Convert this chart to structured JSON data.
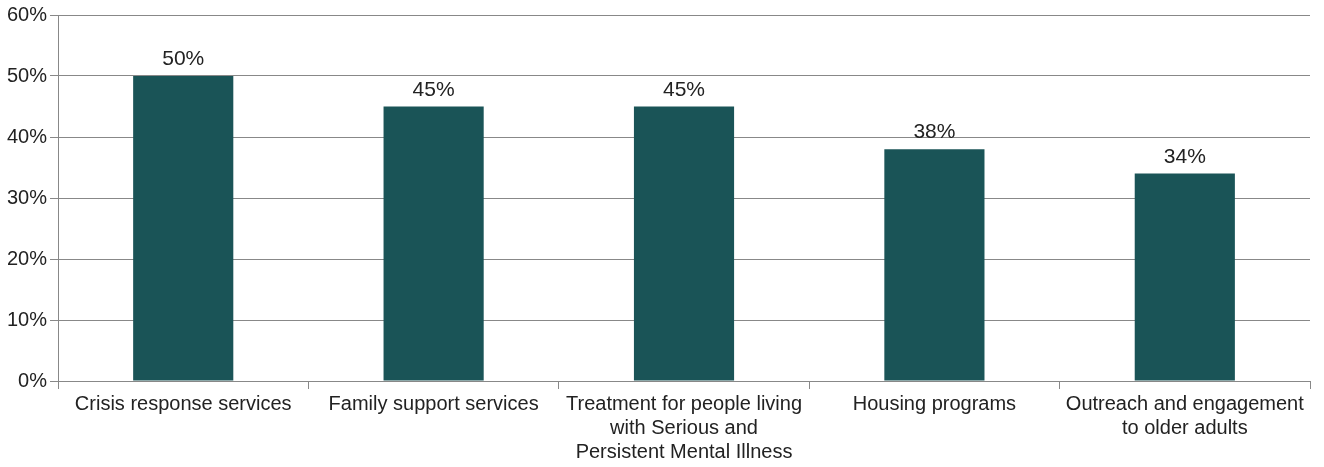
{
  "chart_data": {
    "type": "bar",
    "categories": [
      "Crisis response services",
      "Family support services",
      "Treatment for people living with Serious and Persistent Mental Illness",
      "Housing programs",
      "Outreach and engagement to older adults"
    ],
    "values": [
      50,
      45,
      45,
      38,
      34
    ],
    "value_labels": [
      "50%",
      "45%",
      "45%",
      "38%",
      "34%"
    ],
    "color": "#1a5457",
    "ylim": [
      0,
      60
    ],
    "yticks": [
      {
        "value": 0,
        "label": "0%"
      },
      {
        "value": 10,
        "label": "10%"
      },
      {
        "value": 20,
        "label": "20%"
      },
      {
        "value": 30,
        "label": "30%"
      },
      {
        "value": 40,
        "label": "40%"
      },
      {
        "value": 50,
        "label": "50%"
      },
      {
        "value": 60,
        "label": "60%"
      }
    ],
    "grid": "y",
    "legend": false
  }
}
